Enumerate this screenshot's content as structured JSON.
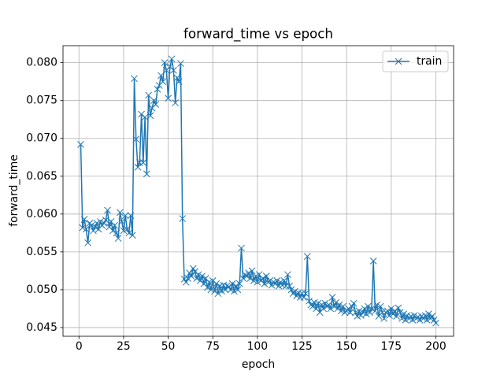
{
  "chart_data": {
    "type": "line",
    "title": "forward_time vs epoch",
    "xlabel": "epoch",
    "ylabel": "forward_time",
    "x": [
      1,
      2,
      3,
      4,
      5,
      6,
      7,
      8,
      9,
      10,
      11,
      12,
      13,
      14,
      15,
      16,
      17,
      18,
      19,
      20,
      21,
      22,
      23,
      24,
      25,
      26,
      27,
      28,
      29,
      30,
      31,
      32,
      33,
      34,
      35,
      36,
      37,
      38,
      39,
      40,
      41,
      42,
      43,
      44,
      45,
      46,
      47,
      48,
      49,
      50,
      51,
      52,
      53,
      54,
      55,
      56,
      57,
      58,
      59,
      60,
      61,
      62,
      63,
      64,
      65,
      66,
      67,
      68,
      69,
      70,
      71,
      72,
      73,
      74,
      75,
      76,
      77,
      78,
      79,
      80,
      81,
      82,
      83,
      84,
      85,
      86,
      87,
      88,
      89,
      90,
      91,
      92,
      93,
      94,
      95,
      96,
      97,
      98,
      99,
      100,
      101,
      102,
      103,
      104,
      105,
      106,
      107,
      108,
      109,
      110,
      111,
      112,
      113,
      114,
      115,
      116,
      117,
      118,
      119,
      120,
      121,
      122,
      123,
      124,
      125,
      126,
      127,
      128,
      129,
      130,
      131,
      132,
      133,
      134,
      135,
      136,
      137,
      138,
      139,
      140,
      141,
      142,
      143,
      144,
      145,
      146,
      147,
      148,
      149,
      150,
      151,
      152,
      153,
      154,
      155,
      156,
      157,
      158,
      159,
      160,
      161,
      162,
      163,
      164,
      165,
      166,
      167,
      168,
      169,
      170,
      171,
      172,
      173,
      174,
      175,
      176,
      177,
      178,
      179,
      180,
      181,
      182,
      183,
      184,
      185,
      186,
      187,
      188,
      189,
      190,
      191,
      192,
      193,
      194,
      195,
      196,
      197,
      198,
      199,
      200
    ],
    "series": [
      {
        "name": "train",
        "color": "#1f77b4",
        "marker": "x",
        "values": [
          0.0692,
          0.0582,
          0.0593,
          0.058,
          0.0562,
          0.0588,
          0.0585,
          0.0578,
          0.0583,
          0.0588,
          0.058,
          0.059,
          0.0585,
          0.0588,
          0.0592,
          0.0605,
          0.0583,
          0.059,
          0.0578,
          0.0585,
          0.0575,
          0.0568,
          0.0602,
          0.059,
          0.0578,
          0.0598,
          0.058,
          0.0575,
          0.0598,
          0.0572,
          0.0779,
          0.0699,
          0.0662,
          0.0668,
          0.0732,
          0.0668,
          0.0728,
          0.0653,
          0.0757,
          0.073,
          0.074,
          0.075,
          0.0745,
          0.0765,
          0.077,
          0.0783,
          0.0775,
          0.08,
          0.079,
          0.0753,
          0.0795,
          0.0805,
          0.079,
          0.0747,
          0.078,
          0.0775,
          0.0799,
          0.0594,
          0.0514,
          0.051,
          0.0515,
          0.0522,
          0.0518,
          0.0528,
          0.0524,
          0.0515,
          0.052,
          0.0512,
          0.0518,
          0.0508,
          0.0515,
          0.0503,
          0.051,
          0.05,
          0.0512,
          0.0498,
          0.0508,
          0.0495,
          0.0505,
          0.0498,
          0.0506,
          0.05,
          0.0505,
          0.0504,
          0.05,
          0.0508,
          0.0498,
          0.0505,
          0.05,
          0.0508,
          0.0555,
          0.0515,
          0.052,
          0.0518,
          0.0522,
          0.0515,
          0.0525,
          0.0512,
          0.0518,
          0.051,
          0.052,
          0.0512,
          0.0515,
          0.0508,
          0.0518,
          0.051,
          0.0512,
          0.0506,
          0.051,
          0.0508,
          0.0512,
          0.0505,
          0.051,
          0.0506,
          0.0512,
          0.0505,
          0.052,
          0.0505,
          0.05,
          0.0495,
          0.0498,
          0.0492,
          0.0496,
          0.049,
          0.0495,
          0.049,
          0.0495,
          0.0544,
          0.0485,
          0.048,
          0.0478,
          0.0483,
          0.0475,
          0.0482,
          0.047,
          0.048,
          0.0475,
          0.0482,
          0.0478,
          0.048,
          0.0475,
          0.049,
          0.0478,
          0.0483,
          0.0475,
          0.048,
          0.0472,
          0.0478,
          0.047,
          0.0472,
          0.0475,
          0.047,
          0.0478,
          0.0482,
          0.047,
          0.0465,
          0.0472,
          0.0466,
          0.047,
          0.0475,
          0.0468,
          0.0478,
          0.047,
          0.0475,
          0.0538,
          0.0472,
          0.048,
          0.0465,
          0.0478,
          0.047,
          0.0462,
          0.047,
          0.0472,
          0.0466,
          0.0475,
          0.0468,
          0.0472,
          0.0465,
          0.0476,
          0.047,
          0.0462,
          0.0468,
          0.046,
          0.0466,
          0.0462,
          0.0465,
          0.046,
          0.0466,
          0.0462,
          0.0464,
          0.046,
          0.0465,
          0.0462,
          0.0466,
          0.046,
          0.0468,
          0.0462,
          0.0465,
          0.046,
          0.0456
        ]
      }
    ],
    "xlim": [
      -8.95,
      209.95
    ],
    "xticks": [
      0,
      25,
      50,
      75,
      100,
      125,
      150,
      175,
      200
    ],
    "ylim": [
      0.04385,
      0.08225
    ],
    "yticks": [
      0.045,
      {
        "value": 0.05,
        "label": "0.050"
      },
      0.055,
      {
        "value": 0.06,
        "label": "0.060"
      },
      0.065,
      {
        "value": 0.07,
        "label": "0.070"
      },
      0.075,
      {
        "value": 0.08,
        "label": "0.080"
      }
    ],
    "grid": true,
    "legend": "upper right"
  }
}
